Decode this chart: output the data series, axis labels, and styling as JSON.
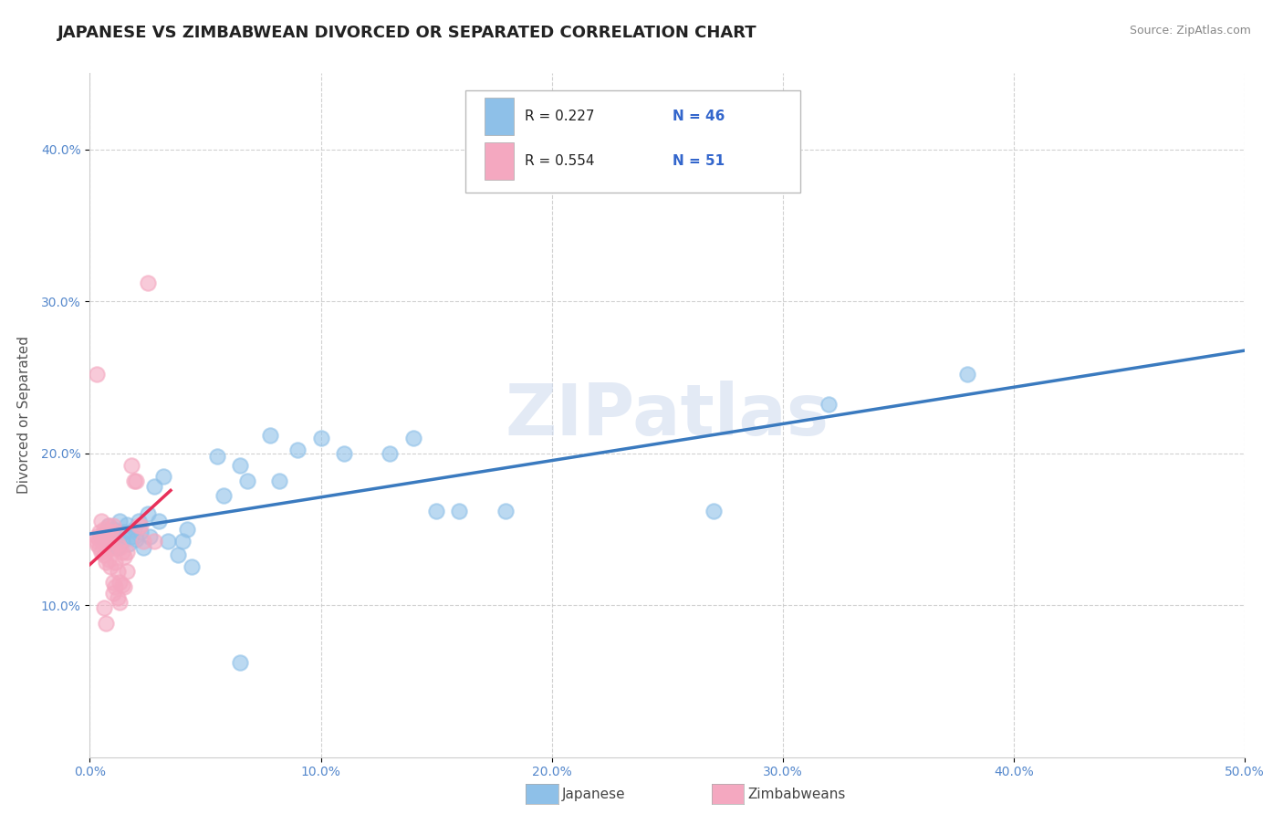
{
  "title": "JAPANESE VS ZIMBABWEAN DIVORCED OR SEPARATED CORRELATION CHART",
  "source": "Source: ZipAtlas.com",
  "ylabel": "Divorced or Separated",
  "xlim": [
    0.0,
    0.5
  ],
  "ylim": [
    0.0,
    0.45
  ],
  "xtick_labels": [
    "0.0%",
    "10.0%",
    "20.0%",
    "30.0%",
    "40.0%",
    "50.0%"
  ],
  "xtick_vals": [
    0.0,
    0.1,
    0.2,
    0.3,
    0.4,
    0.5
  ],
  "ytick_labels": [
    "10.0%",
    "20.0%",
    "30.0%",
    "40.0%"
  ],
  "ytick_vals": [
    0.1,
    0.2,
    0.3,
    0.4
  ],
  "grid_color": "#cccccc",
  "background_color": "#ffffff",
  "watermark": "ZIPatlas",
  "legend_r_japanese": "R = 0.227",
  "legend_n_japanese": "N = 46",
  "legend_r_zimbabwean": "R = 0.554",
  "legend_n_zimbabwean": "N = 51",
  "japanese_color": "#8ec0e8",
  "zimbabwean_color": "#f4a8c0",
  "japanese_line_color": "#3a7abf",
  "zimbabwean_line_color": "#e8305a",
  "japanese_scatter": [
    [
      0.005,
      0.145
    ],
    [
      0.007,
      0.148
    ],
    [
      0.008,
      0.152
    ],
    [
      0.009,
      0.14
    ],
    [
      0.01,
      0.15
    ],
    [
      0.011,
      0.145
    ],
    [
      0.012,
      0.138
    ],
    [
      0.013,
      0.155
    ],
    [
      0.014,
      0.142
    ],
    [
      0.015,
      0.148
    ],
    [
      0.016,
      0.153
    ],
    [
      0.017,
      0.14
    ],
    [
      0.018,
      0.145
    ],
    [
      0.019,
      0.15
    ],
    [
      0.02,
      0.143
    ],
    [
      0.021,
      0.155
    ],
    [
      0.022,
      0.148
    ],
    [
      0.023,
      0.138
    ],
    [
      0.025,
      0.16
    ],
    [
      0.026,
      0.145
    ],
    [
      0.028,
      0.178
    ],
    [
      0.03,
      0.155
    ],
    [
      0.032,
      0.185
    ],
    [
      0.034,
      0.142
    ],
    [
      0.038,
      0.133
    ],
    [
      0.04,
      0.142
    ],
    [
      0.042,
      0.15
    ],
    [
      0.044,
      0.125
    ],
    [
      0.055,
      0.198
    ],
    [
      0.058,
      0.172
    ],
    [
      0.065,
      0.192
    ],
    [
      0.068,
      0.182
    ],
    [
      0.078,
      0.212
    ],
    [
      0.082,
      0.182
    ],
    [
      0.09,
      0.202
    ],
    [
      0.1,
      0.21
    ],
    [
      0.11,
      0.2
    ],
    [
      0.13,
      0.2
    ],
    [
      0.14,
      0.21
    ],
    [
      0.15,
      0.162
    ],
    [
      0.16,
      0.162
    ],
    [
      0.18,
      0.162
    ],
    [
      0.27,
      0.162
    ],
    [
      0.32,
      0.232
    ],
    [
      0.38,
      0.252
    ],
    [
      0.065,
      0.062
    ]
  ],
  "zimbabwean_scatter": [
    [
      0.003,
      0.145
    ],
    [
      0.003,
      0.142
    ],
    [
      0.003,
      0.14
    ],
    [
      0.004,
      0.148
    ],
    [
      0.004,
      0.143
    ],
    [
      0.004,
      0.138
    ],
    [
      0.005,
      0.155
    ],
    [
      0.005,
      0.145
    ],
    [
      0.005,
      0.135
    ],
    [
      0.006,
      0.15
    ],
    [
      0.006,
      0.143
    ],
    [
      0.006,
      0.133
    ],
    [
      0.007,
      0.148
    ],
    [
      0.007,
      0.14
    ],
    [
      0.007,
      0.128
    ],
    [
      0.008,
      0.152
    ],
    [
      0.008,
      0.143
    ],
    [
      0.008,
      0.13
    ],
    [
      0.009,
      0.148
    ],
    [
      0.009,
      0.138
    ],
    [
      0.009,
      0.125
    ],
    [
      0.01,
      0.152
    ],
    [
      0.01,
      0.138
    ],
    [
      0.01,
      0.115
    ],
    [
      0.011,
      0.148
    ],
    [
      0.011,
      0.128
    ],
    [
      0.011,
      0.112
    ],
    [
      0.012,
      0.14
    ],
    [
      0.012,
      0.122
    ],
    [
      0.012,
      0.105
    ],
    [
      0.013,
      0.138
    ],
    [
      0.013,
      0.115
    ],
    [
      0.013,
      0.102
    ],
    [
      0.014,
      0.135
    ],
    [
      0.014,
      0.113
    ],
    [
      0.015,
      0.132
    ],
    [
      0.015,
      0.112
    ],
    [
      0.016,
      0.135
    ],
    [
      0.016,
      0.122
    ],
    [
      0.018,
      0.192
    ],
    [
      0.019,
      0.182
    ],
    [
      0.02,
      0.182
    ],
    [
      0.021,
      0.152
    ],
    [
      0.022,
      0.152
    ],
    [
      0.023,
      0.142
    ],
    [
      0.025,
      0.312
    ],
    [
      0.028,
      0.142
    ],
    [
      0.003,
      0.252
    ],
    [
      0.006,
      0.098
    ],
    [
      0.007,
      0.088
    ],
    [
      0.01,
      0.108
    ]
  ],
  "title_fontsize": 13,
  "axis_label_fontsize": 11,
  "tick_fontsize": 10,
  "legend_fontsize": 13
}
